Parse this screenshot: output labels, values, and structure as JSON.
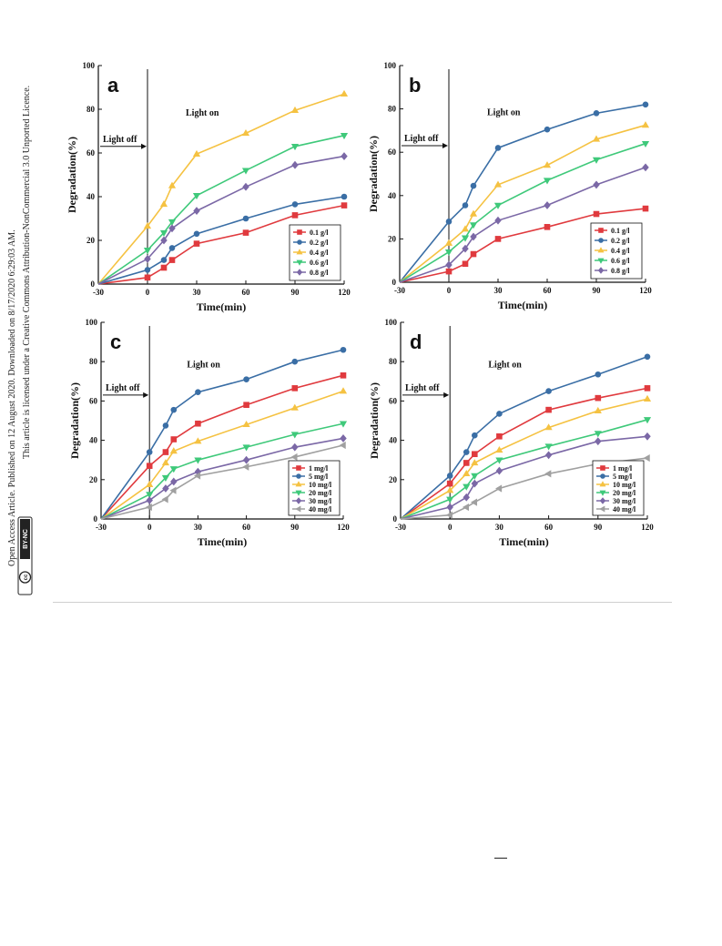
{
  "license": {
    "line1": "Open Access Article. Published on 12 August 2020. Downloaded on 8/17/2020 6:29:03 AM.",
    "line2": "This article is licensed under a Creative Commons Attribution-NonCommercial 3.0 Unported Licence.",
    "badge_by_nc": "BY-NC",
    "badge_cc": "cc"
  },
  "colors": {
    "red": "#e03a3e",
    "blue": "#3a6ea5",
    "yellow": "#f5c242",
    "green": "#3fc97a",
    "purple": "#7b68a6",
    "gray": "#a0a0a0"
  },
  "chart_data": [
    {
      "type": "line",
      "panel": "a",
      "xlabel": "Time(min)",
      "ylabel": "Degradation(%)",
      "x": [
        -30,
        0,
        10,
        15,
        30,
        60,
        90,
        120
      ],
      "xticks": [
        -30,
        0,
        30,
        60,
        90,
        120
      ],
      "yticks": [
        0,
        20,
        40,
        60,
        80,
        100
      ],
      "xlim": [
        -30,
        120
      ],
      "ylim": [
        0,
        100
      ],
      "legend_position": "bottom-right",
      "annotations": {
        "light_off": "Light off",
        "light_on": "Light on"
      },
      "series": [
        {
          "name": "0.1 g/l",
          "color": "red",
          "marker": "square",
          "values": [
            0,
            3,
            7.5,
            11,
            18.5,
            23.5,
            31.5,
            36
          ]
        },
        {
          "name": "0.2 g/l",
          "color": "blue",
          "marker": "circle",
          "values": [
            0,
            6.5,
            11,
            16.5,
            23,
            30,
            36.5,
            40
          ]
        },
        {
          "name": "0.4 g/l",
          "color": "yellow",
          "marker": "triangle-up",
          "values": [
            0,
            26.5,
            36.5,
            45,
            59.5,
            69,
            79.5,
            87
          ]
        },
        {
          "name": "0.6 g/l",
          "color": "green",
          "marker": "triangle-down",
          "values": [
            0,
            15.5,
            23.5,
            28.5,
            40.5,
            52,
            63,
            68
          ]
        },
        {
          "name": "0.8 g/l",
          "color": "purple",
          "marker": "diamond",
          "values": [
            0,
            11.5,
            20,
            25.5,
            33.5,
            44.5,
            54.5,
            58.5
          ]
        }
      ]
    },
    {
      "type": "line",
      "panel": "b",
      "xlabel": "Time(min)",
      "ylabel": "Degradation(%)",
      "x": [
        -30,
        0,
        10,
        15,
        30,
        60,
        90,
        120
      ],
      "xticks": [
        -30,
        0,
        30,
        60,
        90,
        120
      ],
      "yticks": [
        0,
        20,
        40,
        60,
        80,
        100
      ],
      "xlim": [
        -30,
        120
      ],
      "ylim": [
        0,
        100
      ],
      "legend_position": "bottom-right",
      "annotations": {
        "light_off": "Light off",
        "light_on": "Light on"
      },
      "series": [
        {
          "name": "0.1 g/l",
          "color": "red",
          "marker": "square",
          "values": [
            0,
            5,
            8.5,
            13,
            20,
            25.5,
            31.5,
            34
          ]
        },
        {
          "name": "0.2 g/l",
          "color": "blue",
          "marker": "circle",
          "values": [
            0,
            28,
            35.5,
            44.5,
            62,
            70.5,
            78,
            82
          ]
        },
        {
          "name": "0.4 g/l",
          "color": "yellow",
          "marker": "triangle-up",
          "values": [
            0,
            18,
            24.5,
            31.5,
            45,
            54,
            66,
            72.5
          ]
        },
        {
          "name": "0.6 g/l",
          "color": "green",
          "marker": "triangle-down",
          "values": [
            0,
            14,
            20.5,
            26.5,
            35.5,
            47,
            56.5,
            64
          ]
        },
        {
          "name": "0.8 g/l",
          "color": "purple",
          "marker": "diamond",
          "values": [
            0,
            8,
            15.5,
            21,
            28.5,
            35.5,
            45,
            53
          ]
        }
      ]
    },
    {
      "type": "line",
      "panel": "c",
      "xlabel": "Time(min)",
      "ylabel": "Degradation(%)",
      "x": [
        -30,
        0,
        10,
        15,
        30,
        60,
        90,
        120
      ],
      "xticks": [
        -30,
        0,
        30,
        60,
        90,
        120
      ],
      "yticks": [
        0,
        20,
        40,
        60,
        80,
        100
      ],
      "xlim": [
        -30,
        120
      ],
      "ylim": [
        0,
        100
      ],
      "legend_position": "bottom-right",
      "annotations": {
        "light_off": "Light off",
        "light_on": "Light on"
      },
      "series": [
        {
          "name": "1 mg/l",
          "color": "red",
          "marker": "square",
          "values": [
            0,
            27,
            34,
            40.5,
            48.5,
            58,
            66.5,
            73
          ]
        },
        {
          "name": "5 mg/l",
          "color": "blue",
          "marker": "circle",
          "values": [
            0,
            34,
            47.5,
            55.5,
            64.5,
            71,
            80,
            86
          ]
        },
        {
          "name": "10 mg/l",
          "color": "yellow",
          "marker": "triangle-up",
          "values": [
            0,
            17.5,
            28.5,
            34.5,
            39.5,
            48,
            56.5,
            65
          ]
        },
        {
          "name": "20 mg/l",
          "color": "green",
          "marker": "triangle-down",
          "values": [
            0,
            12.5,
            21,
            25.5,
            30,
            36.5,
            43,
            48.5
          ]
        },
        {
          "name": "30 mg/l",
          "color": "purple",
          "marker": "diamond",
          "values": [
            0,
            9.5,
            15.5,
            19,
            24,
            30,
            36.5,
            41
          ]
        },
        {
          "name": "40 mg/l",
          "color": "gray",
          "marker": "triangle-left",
          "values": [
            0,
            6,
            10,
            14.5,
            22,
            26.5,
            31.5,
            37.5
          ]
        }
      ]
    },
    {
      "type": "line",
      "panel": "d",
      "xlabel": "Time(min)",
      "ylabel": "Degradation(%)",
      "x": [
        -30,
        0,
        10,
        15,
        30,
        60,
        90,
        120
      ],
      "xticks": [
        -30,
        0,
        30,
        60,
        90,
        120
      ],
      "yticks": [
        0,
        20,
        40,
        60,
        80,
        100
      ],
      "xlim": [
        -30,
        120
      ],
      "ylim": [
        0,
        100
      ],
      "legend_position": "bottom-right",
      "annotations": {
        "light_off": "Light off",
        "light_on": "Light on"
      },
      "series": [
        {
          "name": "1 mg/l",
          "color": "red",
          "marker": "square",
          "values": [
            0,
            18,
            28.5,
            33,
            42,
            55.5,
            61.5,
            66.5
          ]
        },
        {
          "name": "5 mg/l",
          "color": "blue",
          "marker": "circle",
          "values": [
            0,
            22,
            34,
            42.5,
            53.5,
            65,
            73.5,
            82.5
          ]
        },
        {
          "name": "10 mg/l",
          "color": "yellow",
          "marker": "triangle-up",
          "values": [
            0,
            14.5,
            23,
            28.5,
            35,
            46.5,
            55,
            61
          ]
        },
        {
          "name": "20 mg/l",
          "color": "green",
          "marker": "triangle-down",
          "values": [
            0,
            10,
            16.5,
            22,
            30,
            37,
            43.5,
            50.5
          ]
        },
        {
          "name": "30 mg/l",
          "color": "purple",
          "marker": "diamond",
          "values": [
            0,
            6,
            11,
            18,
            24.5,
            32.5,
            39.5,
            42
          ]
        },
        {
          "name": "40 mg/l",
          "color": "gray",
          "marker": "triangle-left",
          "values": [
            0,
            2,
            6,
            8.5,
            15.5,
            23,
            28,
            31
          ]
        }
      ]
    }
  ]
}
